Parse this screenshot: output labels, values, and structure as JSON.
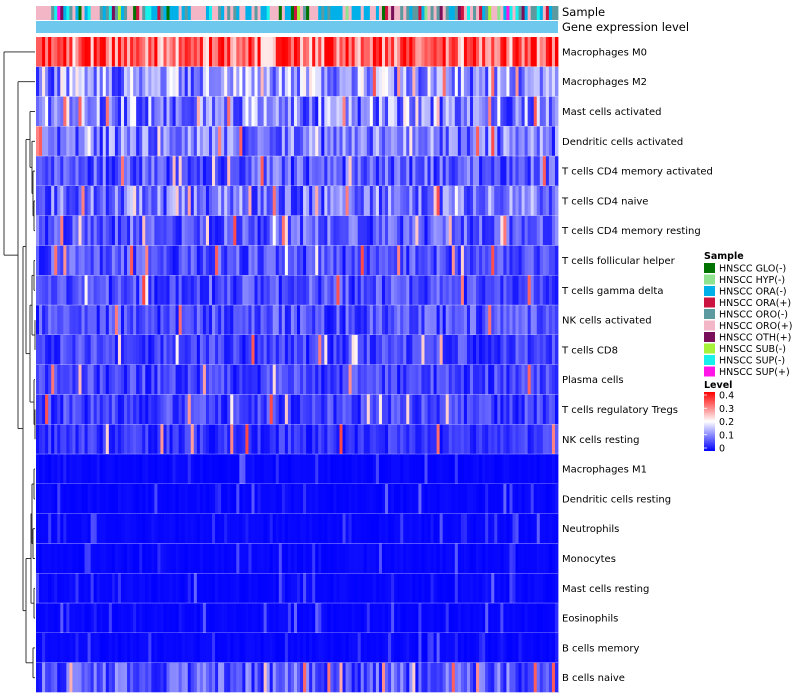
{
  "chart_data": {
    "type": "heatmap",
    "title": "",
    "annotation_rows": [
      {
        "name": "Sample",
        "type": "categorical"
      },
      {
        "name": "Gene expression level",
        "type": "continuous"
      }
    ],
    "rows": [
      "Macrophages M0",
      "Macrophages M2",
      "Mast cells activated",
      "Dendritic cells activated",
      "T cells CD4 memory activated",
      "T cells CD4 naive",
      "T cells CD4 memory resting",
      "T cells follicular helper",
      "T cells gamma delta",
      "NK cells activated",
      "T cells CD8",
      "Plasma cells",
      "T cells regulatory  Tregs",
      "NK cells resting",
      "Macrophages M1",
      "Dendritic cells resting",
      "Neutrophils",
      "Monocytes",
      "Mast cells resting",
      "Eosinophils",
      "B cells memory",
      "B cells naive"
    ],
    "row_mean_levels": [
      0.32,
      0.12,
      0.11,
      0.09,
      0.07,
      0.09,
      0.07,
      0.06,
      0.06,
      0.06,
      0.05,
      0.05,
      0.05,
      0.04,
      0.01,
      0.01,
      0.01,
      0.01,
      0.02,
      0.01,
      0.01,
      0.07
    ],
    "n_samples": 172,
    "legend_sample": {
      "title": "Sample",
      "entries": [
        {
          "label": "HNSCC GLO(-)",
          "color": "#007300"
        },
        {
          "label": "HNSCC HYP(-)",
          "color": "#8FE38F"
        },
        {
          "label": "HNSCC ORA(-)",
          "color": "#00B0E8"
        },
        {
          "label": "HNSCC ORA(+)",
          "color": "#CC1440"
        },
        {
          "label": "HNSCC ORO(-)",
          "color": "#5C9AA0"
        },
        {
          "label": "HNSCC ORO(+)",
          "color": "#F2B6C6"
        },
        {
          "label": "HNSCC OTH(+)",
          "color": "#7A0F59"
        },
        {
          "label": "HNSCC SUB(-)",
          "color": "#A6F23A"
        },
        {
          "label": "HNSCC SUP(-)",
          "color": "#17F0EB"
        },
        {
          "label": "HNSCC SUP(+)",
          "color": "#FF15E8"
        }
      ]
    },
    "legend_level": {
      "title": "Level",
      "ticks": [
        "0.4",
        "0.3",
        "0.2",
        "0.1",
        "0"
      ],
      "range": [
        0,
        0.4
      ],
      "colors": [
        "#0000FF",
        "#FFFFFF",
        "#FF0000"
      ]
    },
    "gene_expression_color": "#6EC8EE"
  }
}
